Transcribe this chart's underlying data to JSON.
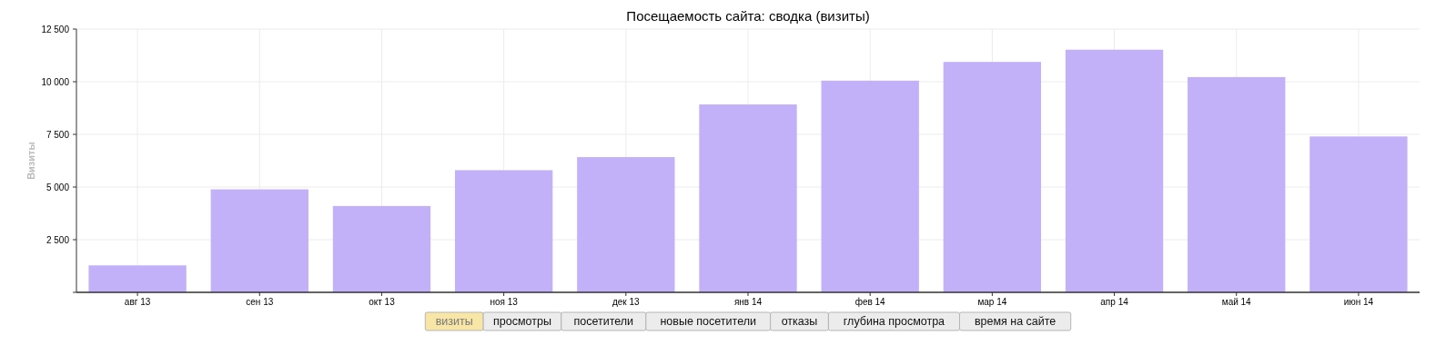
{
  "chart_data": {
    "type": "bar",
    "title": "Посещаемость сайта: сводка (визиты)",
    "ylabel": "Визиты",
    "categories": [
      "авг 13",
      "сен 13",
      "окт 13",
      "ноя 13",
      "дек 13",
      "янв 14",
      "фев 14",
      "мар 14",
      "апр 14",
      "май 14",
      "июн 14"
    ],
    "values": [
      1280,
      4890,
      4100,
      5800,
      6420,
      8920,
      10050,
      10940,
      11520,
      10220,
      7400
    ],
    "color": "#c2b0f9",
    "ylim": [
      0,
      12500
    ],
    "yticks": [
      {
        "value": 0,
        "label": null
      },
      {
        "value": 2500,
        "label": "2 500"
      },
      {
        "value": 5000,
        "label": "5 000"
      },
      {
        "value": 7500,
        "label": "7 500"
      },
      {
        "value": 10000,
        "label": "10 000"
      },
      {
        "value": 12500,
        "label": "12 500"
      }
    ],
    "grid": true,
    "annotations": [
      "визиты",
      "просмотры",
      "посетители",
      "новые посетители",
      "отказы",
      "глубина просмотра",
      "время на сайте"
    ]
  }
}
